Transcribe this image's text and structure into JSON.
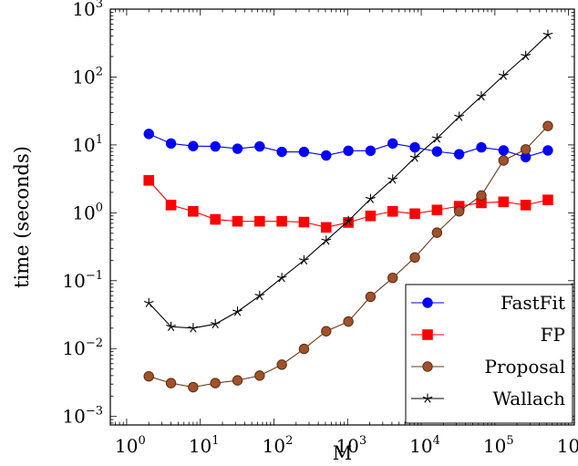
{
  "chart_data": {
    "type": "line",
    "xlabel": "M",
    "ylabel": "time (seconds)",
    "xscale": "log",
    "yscale": "log",
    "xlim": [
      0.6,
      1200000
    ],
    "ylim": [
      0.00075,
      1000
    ],
    "x_ticks": [
      {
        "base": "10",
        "exp": "0",
        "value": 1
      },
      {
        "base": "10",
        "exp": "1",
        "value": 10
      },
      {
        "base": "10",
        "exp": "2",
        "value": 100
      },
      {
        "base": "10",
        "exp": "3",
        "value": 1000
      },
      {
        "base": "10",
        "exp": "4",
        "value": 10000
      },
      {
        "base": "10",
        "exp": "5",
        "value": 100000
      },
      {
        "base": "10",
        "exp": "6",
        "value": 1000000
      }
    ],
    "y_ticks": [
      {
        "base": "10",
        "exp": "−3",
        "value": 0.001
      },
      {
        "base": "10",
        "exp": "−2",
        "value": 0.01
      },
      {
        "base": "10",
        "exp": "−1",
        "value": 0.1
      },
      {
        "base": "10",
        "exp": "0",
        "value": 1
      },
      {
        "base": "10",
        "exp": "1",
        "value": 10
      },
      {
        "base": "10",
        "exp": "2",
        "value": 100
      },
      {
        "base": "10",
        "exp": "3",
        "value": 1000
      }
    ],
    "x": [
      2,
      4,
      8,
      16,
      32,
      64,
      128,
      256,
      512,
      1024,
      2048,
      4096,
      8192,
      16384,
      32768,
      65536,
      131072,
      262144,
      524288
    ],
    "series": [
      {
        "name": "FastFit",
        "color": "#0000ff",
        "marker": "circle",
        "values": [
          14.5,
          10.5,
          9.6,
          9.5,
          8.8,
          9.5,
          7.9,
          7.9,
          7.0,
          8.2,
          8.2,
          10.5,
          9.2,
          8.0,
          7.3,
          9.2,
          8.3,
          6.6,
          8.3
        ]
      },
      {
        "name": "FP",
        "color": "#ff0000",
        "marker": "square",
        "values": [
          3.0,
          1.3,
          1.05,
          0.8,
          0.75,
          0.75,
          0.75,
          0.73,
          0.61,
          0.72,
          0.9,
          1.05,
          0.97,
          1.1,
          1.25,
          1.4,
          1.45,
          1.3,
          1.55
        ]
      },
      {
        "name": "Proposal",
        "color": "#a0522d",
        "marker": "circle",
        "values": [
          0.0039,
          0.0031,
          0.0027,
          0.0031,
          0.0034,
          0.004,
          0.0058,
          0.0099,
          0.018,
          0.025,
          0.058,
          0.11,
          0.22,
          0.51,
          1.05,
          1.8,
          5.9,
          8.6,
          19.0
        ]
      },
      {
        "name": "Wallach",
        "color": "#000000",
        "marker": "star",
        "values": [
          0.047,
          0.021,
          0.02,
          0.023,
          0.035,
          0.06,
          0.11,
          0.2,
          0.39,
          0.76,
          1.6,
          3.1,
          6.5,
          12.5,
          26,
          52,
          105,
          205,
          420
        ]
      }
    ],
    "legend_position": "bottom-right",
    "grid": false
  }
}
